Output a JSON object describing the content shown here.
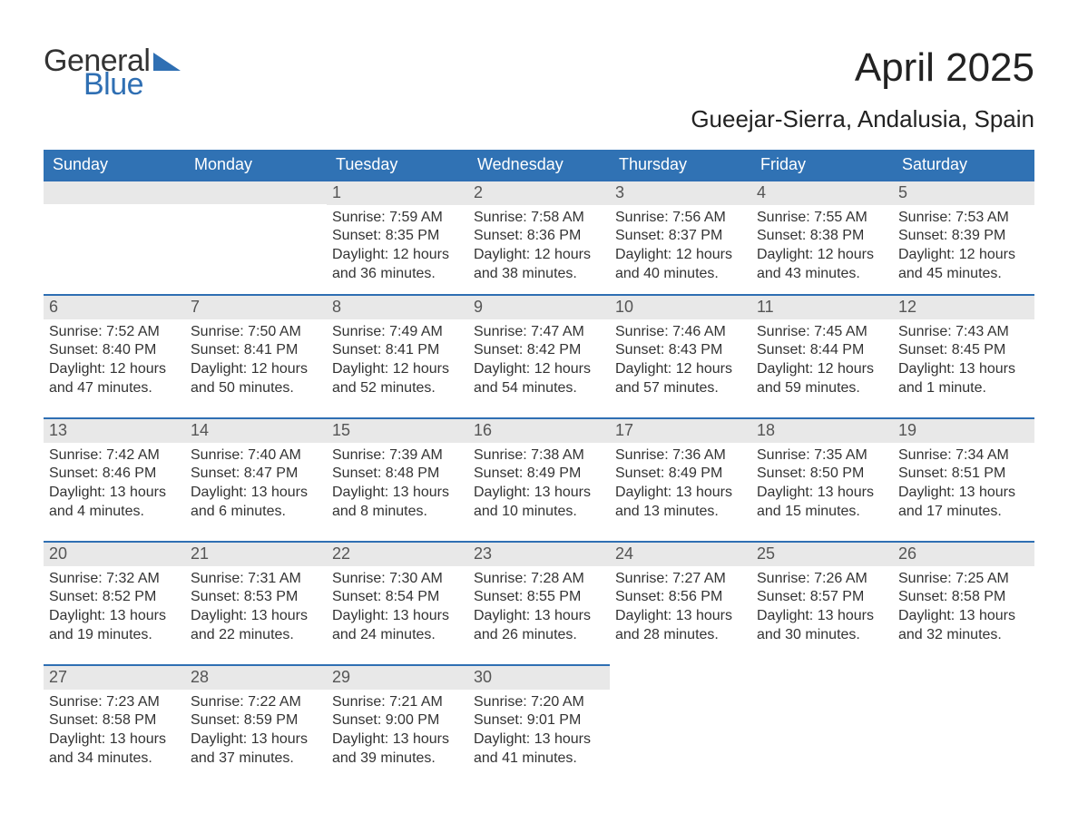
{
  "brand": {
    "word1": "General",
    "word2": "Blue",
    "logo_color": "#2f6fb3",
    "text_color": "#333333"
  },
  "title": "April 2025",
  "subtitle": "Gueejar-Sierra, Andalusia, Spain",
  "colors": {
    "header_bg": "#3072b4",
    "header_fg": "#ffffff",
    "row_border": "#2f6fb3",
    "daynum_bg": "#e8e8e8",
    "daynum_fg": "#555555",
    "body_text": "#333333",
    "page_bg": "#ffffff"
  },
  "typography": {
    "title_fontsize": 44,
    "subtitle_fontsize": 26,
    "dayhead_fontsize": 18,
    "daynum_fontsize": 18,
    "info_fontsize": 16
  },
  "layout": {
    "columns": 7,
    "rows": 5,
    "cell_min_height": 136
  },
  "day_headers": [
    "Sunday",
    "Monday",
    "Tuesday",
    "Wednesday",
    "Thursday",
    "Friday",
    "Saturday"
  ],
  "labels": {
    "sunrise": "Sunrise:",
    "sunset": "Sunset:",
    "daylight": "Daylight:"
  },
  "weeks": [
    [
      {
        "blank": true
      },
      {
        "blank": true
      },
      {
        "day": "1",
        "sunrise": "7:59 AM",
        "sunset": "8:35 PM",
        "daylight_l1": "12 hours",
        "daylight_l2": "and 36 minutes."
      },
      {
        "day": "2",
        "sunrise": "7:58 AM",
        "sunset": "8:36 PM",
        "daylight_l1": "12 hours",
        "daylight_l2": "and 38 minutes."
      },
      {
        "day": "3",
        "sunrise": "7:56 AM",
        "sunset": "8:37 PM",
        "daylight_l1": "12 hours",
        "daylight_l2": "and 40 minutes."
      },
      {
        "day": "4",
        "sunrise": "7:55 AM",
        "sunset": "8:38 PM",
        "daylight_l1": "12 hours",
        "daylight_l2": "and 43 minutes."
      },
      {
        "day": "5",
        "sunrise": "7:53 AM",
        "sunset": "8:39 PM",
        "daylight_l1": "12 hours",
        "daylight_l2": "and 45 minutes."
      }
    ],
    [
      {
        "day": "6",
        "sunrise": "7:52 AM",
        "sunset": "8:40 PM",
        "daylight_l1": "12 hours",
        "daylight_l2": "and 47 minutes."
      },
      {
        "day": "7",
        "sunrise": "7:50 AM",
        "sunset": "8:41 PM",
        "daylight_l1": "12 hours",
        "daylight_l2": "and 50 minutes."
      },
      {
        "day": "8",
        "sunrise": "7:49 AM",
        "sunset": "8:41 PM",
        "daylight_l1": "12 hours",
        "daylight_l2": "and 52 minutes."
      },
      {
        "day": "9",
        "sunrise": "7:47 AM",
        "sunset": "8:42 PM",
        "daylight_l1": "12 hours",
        "daylight_l2": "and 54 minutes."
      },
      {
        "day": "10",
        "sunrise": "7:46 AM",
        "sunset": "8:43 PM",
        "daylight_l1": "12 hours",
        "daylight_l2": "and 57 minutes."
      },
      {
        "day": "11",
        "sunrise": "7:45 AM",
        "sunset": "8:44 PM",
        "daylight_l1": "12 hours",
        "daylight_l2": "and 59 minutes."
      },
      {
        "day": "12",
        "sunrise": "7:43 AM",
        "sunset": "8:45 PM",
        "daylight_l1": "13 hours",
        "daylight_l2": "and 1 minute."
      }
    ],
    [
      {
        "day": "13",
        "sunrise": "7:42 AM",
        "sunset": "8:46 PM",
        "daylight_l1": "13 hours",
        "daylight_l2": "and 4 minutes."
      },
      {
        "day": "14",
        "sunrise": "7:40 AM",
        "sunset": "8:47 PM",
        "daylight_l1": "13 hours",
        "daylight_l2": "and 6 minutes."
      },
      {
        "day": "15",
        "sunrise": "7:39 AM",
        "sunset": "8:48 PM",
        "daylight_l1": "13 hours",
        "daylight_l2": "and 8 minutes."
      },
      {
        "day": "16",
        "sunrise": "7:38 AM",
        "sunset": "8:49 PM",
        "daylight_l1": "13 hours",
        "daylight_l2": "and 10 minutes."
      },
      {
        "day": "17",
        "sunrise": "7:36 AM",
        "sunset": "8:49 PM",
        "daylight_l1": "13 hours",
        "daylight_l2": "and 13 minutes."
      },
      {
        "day": "18",
        "sunrise": "7:35 AM",
        "sunset": "8:50 PM",
        "daylight_l1": "13 hours",
        "daylight_l2": "and 15 minutes."
      },
      {
        "day": "19",
        "sunrise": "7:34 AM",
        "sunset": "8:51 PM",
        "daylight_l1": "13 hours",
        "daylight_l2": "and 17 minutes."
      }
    ],
    [
      {
        "day": "20",
        "sunrise": "7:32 AM",
        "sunset": "8:52 PM",
        "daylight_l1": "13 hours",
        "daylight_l2": "and 19 minutes."
      },
      {
        "day": "21",
        "sunrise": "7:31 AM",
        "sunset": "8:53 PM",
        "daylight_l1": "13 hours",
        "daylight_l2": "and 22 minutes."
      },
      {
        "day": "22",
        "sunrise": "7:30 AM",
        "sunset": "8:54 PM",
        "daylight_l1": "13 hours",
        "daylight_l2": "and 24 minutes."
      },
      {
        "day": "23",
        "sunrise": "7:28 AM",
        "sunset": "8:55 PM",
        "daylight_l1": "13 hours",
        "daylight_l2": "and 26 minutes."
      },
      {
        "day": "24",
        "sunrise": "7:27 AM",
        "sunset": "8:56 PM",
        "daylight_l1": "13 hours",
        "daylight_l2": "and 28 minutes."
      },
      {
        "day": "25",
        "sunrise": "7:26 AM",
        "sunset": "8:57 PM",
        "daylight_l1": "13 hours",
        "daylight_l2": "and 30 minutes."
      },
      {
        "day": "26",
        "sunrise": "7:25 AM",
        "sunset": "8:58 PM",
        "daylight_l1": "13 hours",
        "daylight_l2": "and 32 minutes."
      }
    ],
    [
      {
        "day": "27",
        "sunrise": "7:23 AM",
        "sunset": "8:58 PM",
        "daylight_l1": "13 hours",
        "daylight_l2": "and 34 minutes."
      },
      {
        "day": "28",
        "sunrise": "7:22 AM",
        "sunset": "8:59 PM",
        "daylight_l1": "13 hours",
        "daylight_l2": "and 37 minutes."
      },
      {
        "day": "29",
        "sunrise": "7:21 AM",
        "sunset": "9:00 PM",
        "daylight_l1": "13 hours",
        "daylight_l2": "and 39 minutes."
      },
      {
        "day": "30",
        "sunrise": "7:20 AM",
        "sunset": "9:01 PM",
        "daylight_l1": "13 hours",
        "daylight_l2": "and 41 minutes."
      },
      {
        "blank": true,
        "noborder": true
      },
      {
        "blank": true,
        "noborder": true
      },
      {
        "blank": true,
        "noborder": true
      }
    ]
  ]
}
